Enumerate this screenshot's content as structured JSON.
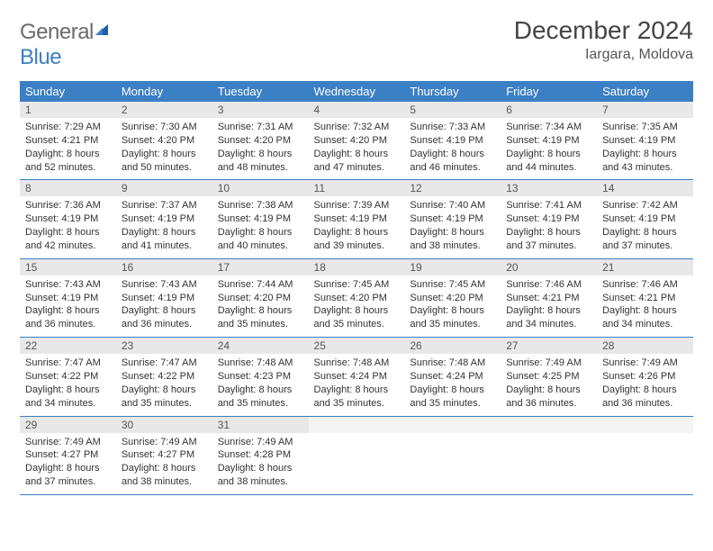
{
  "brand": {
    "part1": "General",
    "part2": "Blue"
  },
  "title": "December 2024",
  "location": "Iargara, Moldova",
  "colors": {
    "header_bg": "#3b7fc4",
    "header_text": "#ffffff",
    "daynum_bg": "#e8e8e8",
    "border": "#3b7fc4",
    "logo_gray": "#6a6a6a",
    "logo_blue": "#3b7fc4"
  },
  "weekdays": [
    "Sunday",
    "Monday",
    "Tuesday",
    "Wednesday",
    "Thursday",
    "Friday",
    "Saturday"
  ],
  "weeks": [
    [
      {
        "n": "1",
        "sr": "Sunrise: 7:29 AM",
        "ss": "Sunset: 4:21 PM",
        "dl": "Daylight: 8 hours and 52 minutes."
      },
      {
        "n": "2",
        "sr": "Sunrise: 7:30 AM",
        "ss": "Sunset: 4:20 PM",
        "dl": "Daylight: 8 hours and 50 minutes."
      },
      {
        "n": "3",
        "sr": "Sunrise: 7:31 AM",
        "ss": "Sunset: 4:20 PM",
        "dl": "Daylight: 8 hours and 48 minutes."
      },
      {
        "n": "4",
        "sr": "Sunrise: 7:32 AM",
        "ss": "Sunset: 4:20 PM",
        "dl": "Daylight: 8 hours and 47 minutes."
      },
      {
        "n": "5",
        "sr": "Sunrise: 7:33 AM",
        "ss": "Sunset: 4:19 PM",
        "dl": "Daylight: 8 hours and 46 minutes."
      },
      {
        "n": "6",
        "sr": "Sunrise: 7:34 AM",
        "ss": "Sunset: 4:19 PM",
        "dl": "Daylight: 8 hours and 44 minutes."
      },
      {
        "n": "7",
        "sr": "Sunrise: 7:35 AM",
        "ss": "Sunset: 4:19 PM",
        "dl": "Daylight: 8 hours and 43 minutes."
      }
    ],
    [
      {
        "n": "8",
        "sr": "Sunrise: 7:36 AM",
        "ss": "Sunset: 4:19 PM",
        "dl": "Daylight: 8 hours and 42 minutes."
      },
      {
        "n": "9",
        "sr": "Sunrise: 7:37 AM",
        "ss": "Sunset: 4:19 PM",
        "dl": "Daylight: 8 hours and 41 minutes."
      },
      {
        "n": "10",
        "sr": "Sunrise: 7:38 AM",
        "ss": "Sunset: 4:19 PM",
        "dl": "Daylight: 8 hours and 40 minutes."
      },
      {
        "n": "11",
        "sr": "Sunrise: 7:39 AM",
        "ss": "Sunset: 4:19 PM",
        "dl": "Daylight: 8 hours and 39 minutes."
      },
      {
        "n": "12",
        "sr": "Sunrise: 7:40 AM",
        "ss": "Sunset: 4:19 PM",
        "dl": "Daylight: 8 hours and 38 minutes."
      },
      {
        "n": "13",
        "sr": "Sunrise: 7:41 AM",
        "ss": "Sunset: 4:19 PM",
        "dl": "Daylight: 8 hours and 37 minutes."
      },
      {
        "n": "14",
        "sr": "Sunrise: 7:42 AM",
        "ss": "Sunset: 4:19 PM",
        "dl": "Daylight: 8 hours and 37 minutes."
      }
    ],
    [
      {
        "n": "15",
        "sr": "Sunrise: 7:43 AM",
        "ss": "Sunset: 4:19 PM",
        "dl": "Daylight: 8 hours and 36 minutes."
      },
      {
        "n": "16",
        "sr": "Sunrise: 7:43 AM",
        "ss": "Sunset: 4:19 PM",
        "dl": "Daylight: 8 hours and 36 minutes."
      },
      {
        "n": "17",
        "sr": "Sunrise: 7:44 AM",
        "ss": "Sunset: 4:20 PM",
        "dl": "Daylight: 8 hours and 35 minutes."
      },
      {
        "n": "18",
        "sr": "Sunrise: 7:45 AM",
        "ss": "Sunset: 4:20 PM",
        "dl": "Daylight: 8 hours and 35 minutes."
      },
      {
        "n": "19",
        "sr": "Sunrise: 7:45 AM",
        "ss": "Sunset: 4:20 PM",
        "dl": "Daylight: 8 hours and 35 minutes."
      },
      {
        "n": "20",
        "sr": "Sunrise: 7:46 AM",
        "ss": "Sunset: 4:21 PM",
        "dl": "Daylight: 8 hours and 34 minutes."
      },
      {
        "n": "21",
        "sr": "Sunrise: 7:46 AM",
        "ss": "Sunset: 4:21 PM",
        "dl": "Daylight: 8 hours and 34 minutes."
      }
    ],
    [
      {
        "n": "22",
        "sr": "Sunrise: 7:47 AM",
        "ss": "Sunset: 4:22 PM",
        "dl": "Daylight: 8 hours and 34 minutes."
      },
      {
        "n": "23",
        "sr": "Sunrise: 7:47 AM",
        "ss": "Sunset: 4:22 PM",
        "dl": "Daylight: 8 hours and 35 minutes."
      },
      {
        "n": "24",
        "sr": "Sunrise: 7:48 AM",
        "ss": "Sunset: 4:23 PM",
        "dl": "Daylight: 8 hours and 35 minutes."
      },
      {
        "n": "25",
        "sr": "Sunrise: 7:48 AM",
        "ss": "Sunset: 4:24 PM",
        "dl": "Daylight: 8 hours and 35 minutes."
      },
      {
        "n": "26",
        "sr": "Sunrise: 7:48 AM",
        "ss": "Sunset: 4:24 PM",
        "dl": "Daylight: 8 hours and 35 minutes."
      },
      {
        "n": "27",
        "sr": "Sunrise: 7:49 AM",
        "ss": "Sunset: 4:25 PM",
        "dl": "Daylight: 8 hours and 36 minutes."
      },
      {
        "n": "28",
        "sr": "Sunrise: 7:49 AM",
        "ss": "Sunset: 4:26 PM",
        "dl": "Daylight: 8 hours and 36 minutes."
      }
    ],
    [
      {
        "n": "29",
        "sr": "Sunrise: 7:49 AM",
        "ss": "Sunset: 4:27 PM",
        "dl": "Daylight: 8 hours and 37 minutes."
      },
      {
        "n": "30",
        "sr": "Sunrise: 7:49 AM",
        "ss": "Sunset: 4:27 PM",
        "dl": "Daylight: 8 hours and 38 minutes."
      },
      {
        "n": "31",
        "sr": "Sunrise: 7:49 AM",
        "ss": "Sunset: 4:28 PM",
        "dl": "Daylight: 8 hours and 38 minutes."
      },
      null,
      null,
      null,
      null
    ]
  ]
}
